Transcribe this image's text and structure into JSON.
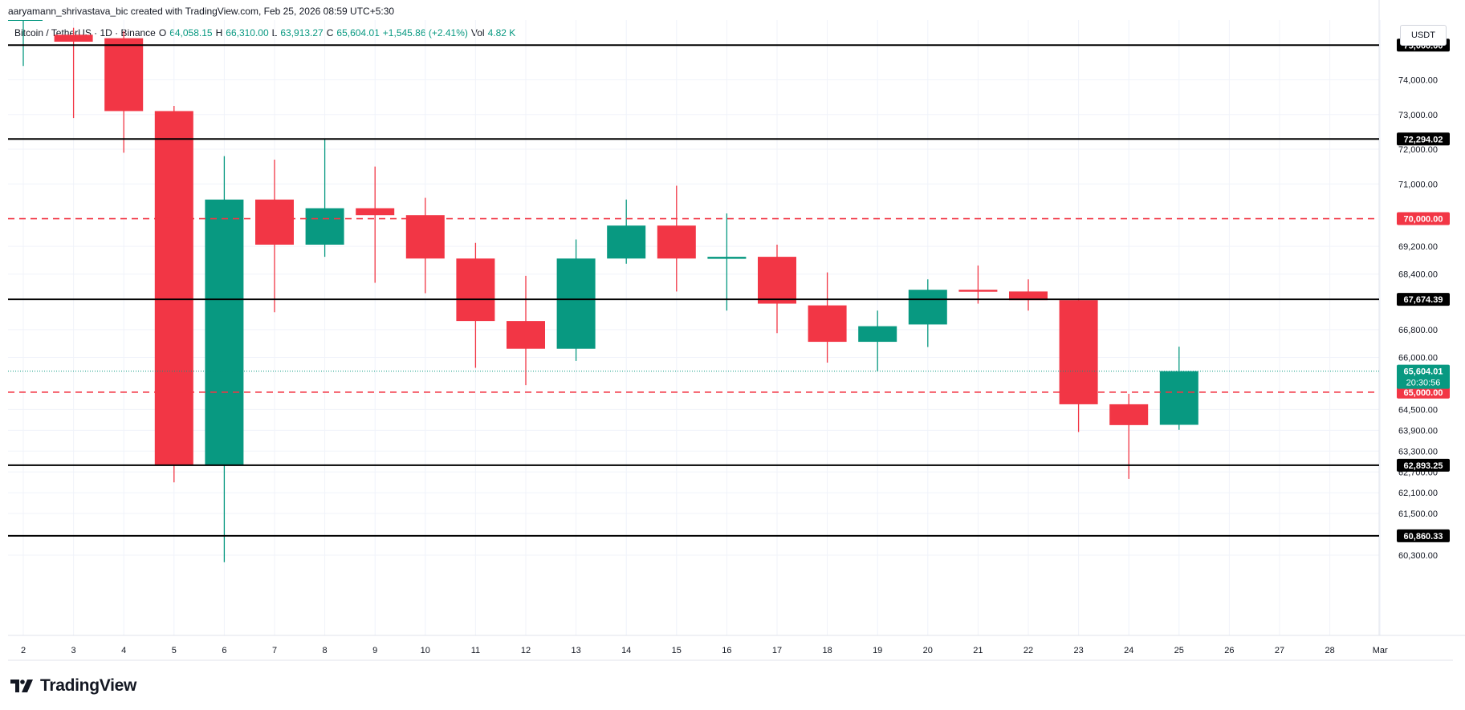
{
  "header": {
    "attribution": "aaryamann_shrivastava_bic created with TradingView.com, Feb 25, 2026 08:59 UTC+5:30",
    "symbol": "Bitcoin / TetherUS · 1D · Binance",
    "open_label": "O",
    "open": "64,058.15",
    "high_label": "H",
    "high": "66,310.00",
    "low_label": "L",
    "low": "63,913.27",
    "close_label": "C",
    "close": "65,604.01",
    "change": "+1,545.86 (+2.41%)",
    "vol_label": "Vol",
    "vol": "4.82 K"
  },
  "currency": "USDT",
  "brand": "TradingView",
  "colors": {
    "up": "#089981",
    "down": "#f23645",
    "level": "#000000",
    "dashed": "#f23645",
    "grid": "#f0f3fa"
  },
  "chart_data": {
    "type": "candlestick",
    "x_ticks": [
      "2",
      "3",
      "4",
      "5",
      "6",
      "7",
      "8",
      "9",
      "10",
      "11",
      "12",
      "13",
      "14",
      "15",
      "16",
      "17",
      "18",
      "19",
      "20",
      "21",
      "22",
      "23",
      "24",
      "25",
      "26",
      "27",
      "28",
      "Mar"
    ],
    "y_ticks": [
      {
        "value": 74000,
        "label": "74,000.00"
      },
      {
        "value": 73000,
        "label": "73,000.00"
      },
      {
        "value": 72000,
        "label": "72,000.00"
      },
      {
        "value": 71000,
        "label": "71,000.00"
      },
      {
        "value": 69200,
        "label": "69,200.00"
      },
      {
        "value": 68400,
        "label": "68,400.00"
      },
      {
        "value": 66800,
        "label": "66,800.00"
      },
      {
        "value": 66000,
        "label": "66,000.00"
      },
      {
        "value": 64500,
        "label": "64,500.00"
      },
      {
        "value": 63900,
        "label": "63,900.00"
      },
      {
        "value": 63300,
        "label": "63,300.00"
      },
      {
        "value": 62700,
        "label": "62,700.00"
      },
      {
        "value": 62100,
        "label": "62,100.00"
      },
      {
        "value": 61500,
        "label": "61,500.00"
      },
      {
        "value": 60300,
        "label": "60,300.00"
      }
    ],
    "candles": [
      {
        "date": "2",
        "open": 75700,
        "high": 75900,
        "low": 74400,
        "close": 75800
      },
      {
        "date": "3",
        "open": 75300,
        "high": 75500,
        "low": 72900,
        "close": 75100
      },
      {
        "date": "4",
        "open": 75200,
        "high": 75400,
        "low": 71900,
        "close": 73100
      },
      {
        "date": "5",
        "open": 73100,
        "high": 73250,
        "low": 62400,
        "close": 62890
      },
      {
        "date": "6",
        "open": 62890,
        "high": 71800,
        "low": 60100,
        "close": 70550
      },
      {
        "date": "7",
        "open": 70550,
        "high": 71700,
        "low": 67300,
        "close": 69250
      },
      {
        "date": "8",
        "open": 69250,
        "high": 72300,
        "low": 68900,
        "close": 70300
      },
      {
        "date": "9",
        "open": 70300,
        "high": 71500,
        "low": 68150,
        "close": 70100
      },
      {
        "date": "10",
        "open": 70100,
        "high": 70600,
        "low": 67850,
        "close": 68850
      },
      {
        "date": "11",
        "open": 68850,
        "high": 69300,
        "low": 65700,
        "close": 67050
      },
      {
        "date": "12",
        "open": 67050,
        "high": 68350,
        "low": 65200,
        "close": 66250
      },
      {
        "date": "13",
        "open": 66250,
        "high": 69400,
        "low": 65900,
        "close": 68850
      },
      {
        "date": "14",
        "open": 68850,
        "high": 70550,
        "low": 68700,
        "close": 69800
      },
      {
        "date": "15",
        "open": 69800,
        "high": 70950,
        "low": 67900,
        "close": 68850
      },
      {
        "date": "16",
        "open": 68850,
        "high": 70150,
        "low": 67350,
        "close": 68900
      },
      {
        "date": "17",
        "open": 68900,
        "high": 69250,
        "low": 66700,
        "close": 67550
      },
      {
        "date": "18",
        "open": 67500,
        "high": 68450,
        "low": 65850,
        "close": 66450
      },
      {
        "date": "19",
        "open": 66450,
        "high": 67350,
        "low": 65600,
        "close": 66900
      },
      {
        "date": "20",
        "open": 66950,
        "high": 68250,
        "low": 66300,
        "close": 67950
      },
      {
        "date": "21",
        "open": 67950,
        "high": 68650,
        "low": 67550,
        "close": 67900
      },
      {
        "date": "22",
        "open": 67900,
        "high": 68250,
        "low": 67350,
        "close": 67650
      },
      {
        "date": "23",
        "open": 67650,
        "high": 67700,
        "low": 63850,
        "close": 64650
      },
      {
        "date": "24",
        "open": 64650,
        "high": 64950,
        "low": 62500,
        "close": 64050
      },
      {
        "date": "25",
        "open": 64058.15,
        "high": 66310,
        "low": 63913.27,
        "close": 65604.01
      }
    ],
    "levels": [
      {
        "value": 75000,
        "label": "75,000.00",
        "style": "solid"
      },
      {
        "value": 72294.02,
        "label": "72,294.02",
        "style": "solid"
      },
      {
        "value": 70000,
        "label": "70,000.00",
        "style": "dashed"
      },
      {
        "value": 67674.39,
        "label": "67,674.39",
        "style": "solid"
      },
      {
        "value": 65000,
        "label": "65,000.00",
        "style": "dashed"
      },
      {
        "value": 62893.25,
        "label": "62,893.25",
        "style": "solid"
      },
      {
        "value": 60860.33,
        "label": "60,860.33",
        "style": "solid"
      }
    ],
    "last_price": {
      "value": 65604.01,
      "label": "65,604.01",
      "countdown": "20:30:56"
    }
  }
}
